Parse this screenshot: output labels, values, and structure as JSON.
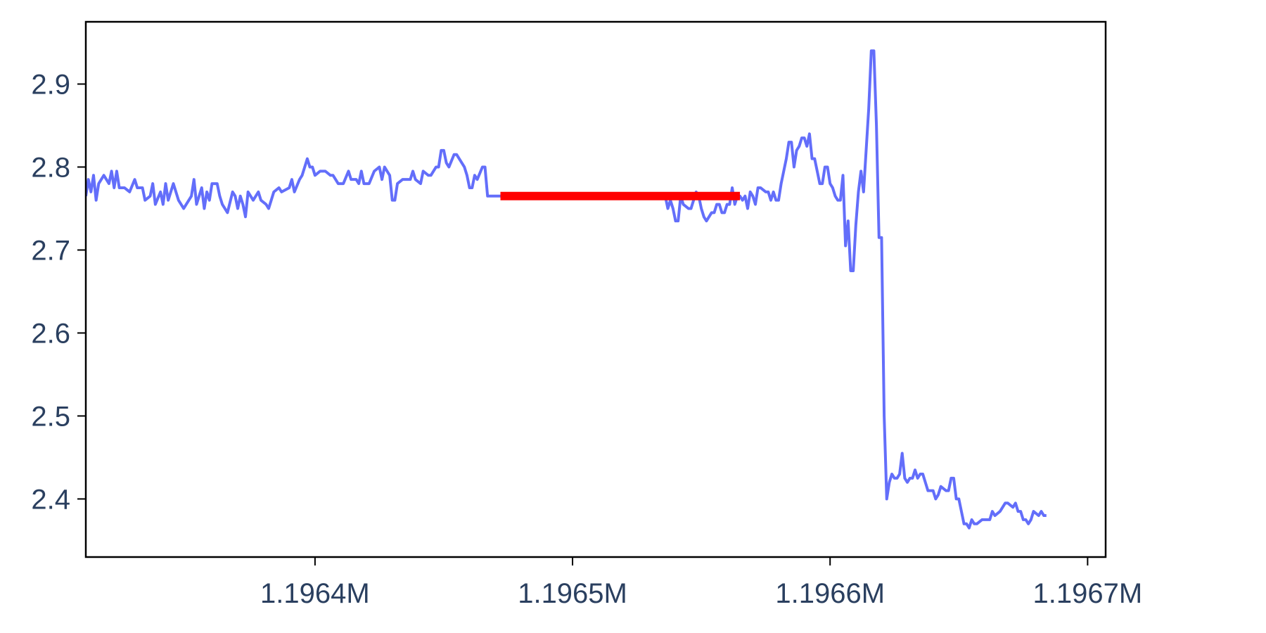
{
  "chart_data": {
    "type": "line",
    "title": "",
    "xlabel": "",
    "ylabel": "",
    "xlim": [
      1196311,
      1196707
    ],
    "ylim": [
      2.33,
      2.975
    ],
    "x_ticks": [
      {
        "value": 1196400,
        "label": "1.1964M"
      },
      {
        "value": 1196500,
        "label": "1.1965M"
      },
      {
        "value": 1196600,
        "label": "1.1966M"
      },
      {
        "value": 1196700,
        "label": "1.1967M"
      }
    ],
    "y_ticks": [
      {
        "value": 2.4,
        "label": "2.4"
      },
      {
        "value": 2.5,
        "label": "2.5"
      },
      {
        "value": 2.6,
        "label": "2.6"
      },
      {
        "value": 2.7,
        "label": "2.7"
      },
      {
        "value": 2.8,
        "label": "2.8"
      },
      {
        "value": 2.9,
        "label": "2.9"
      }
    ],
    "grid": false,
    "series": [
      {
        "color": "#636efa",
        "points": [
          [
            1196311,
            2.765
          ],
          [
            1196312,
            2.785
          ],
          [
            1196313,
            2.77
          ],
          [
            1196314,
            2.79
          ],
          [
            1196315,
            2.76
          ],
          [
            1196316,
            2.78
          ],
          [
            1196318,
            2.79
          ],
          [
            1196320,
            2.78
          ],
          [
            1196321,
            2.795
          ],
          [
            1196322,
            2.775
          ],
          [
            1196323,
            2.795
          ],
          [
            1196324,
            2.775
          ],
          [
            1196326,
            2.775
          ],
          [
            1196328,
            2.77
          ],
          [
            1196330,
            2.785
          ],
          [
            1196331,
            2.775
          ],
          [
            1196333,
            2.775
          ],
          [
            1196334,
            2.76
          ],
          [
            1196336,
            2.765
          ],
          [
            1196337,
            2.78
          ],
          [
            1196338,
            2.755
          ],
          [
            1196340,
            2.77
          ],
          [
            1196341,
            2.755
          ],
          [
            1196342,
            2.78
          ],
          [
            1196343,
            2.76
          ],
          [
            1196345,
            2.78
          ],
          [
            1196347,
            2.76
          ],
          [
            1196349,
            2.75
          ],
          [
            1196350,
            2.755
          ],
          [
            1196352,
            2.765
          ],
          [
            1196353,
            2.785
          ],
          [
            1196354,
            2.755
          ],
          [
            1196356,
            2.775
          ],
          [
            1196357,
            2.75
          ],
          [
            1196358,
            2.77
          ],
          [
            1196359,
            2.76
          ],
          [
            1196360,
            2.78
          ],
          [
            1196362,
            2.78
          ],
          [
            1196363,
            2.765
          ],
          [
            1196364,
            2.755
          ],
          [
            1196366,
            2.745
          ],
          [
            1196368,
            2.77
          ],
          [
            1196369,
            2.765
          ],
          [
            1196370,
            2.75
          ],
          [
            1196371,
            2.765
          ],
          [
            1196372,
            2.755
          ],
          [
            1196373,
            2.74
          ],
          [
            1196374,
            2.77
          ],
          [
            1196376,
            2.76
          ],
          [
            1196378,
            2.77
          ],
          [
            1196379,
            2.76
          ],
          [
            1196381,
            2.755
          ],
          [
            1196382,
            2.75
          ],
          [
            1196384,
            2.77
          ],
          [
            1196386,
            2.775
          ],
          [
            1196387,
            2.77
          ],
          [
            1196390,
            2.775
          ],
          [
            1196391,
            2.785
          ],
          [
            1196392,
            2.77
          ],
          [
            1196394,
            2.785
          ],
          [
            1196395,
            2.79
          ],
          [
            1196397,
            2.81
          ],
          [
            1196398,
            2.8
          ],
          [
            1196399,
            2.8
          ],
          [
            1196400,
            2.79
          ],
          [
            1196402,
            2.795
          ],
          [
            1196404,
            2.795
          ],
          [
            1196406,
            2.79
          ],
          [
            1196407,
            2.79
          ],
          [
            1196409,
            2.78
          ],
          [
            1196411,
            2.78
          ],
          [
            1196413,
            2.795
          ],
          [
            1196414,
            2.785
          ],
          [
            1196416,
            2.785
          ],
          [
            1196417,
            2.78
          ],
          [
            1196418,
            2.795
          ],
          [
            1196419,
            2.78
          ],
          [
            1196421,
            2.78
          ],
          [
            1196423,
            2.795
          ],
          [
            1196425,
            2.8
          ],
          [
            1196426,
            2.785
          ],
          [
            1196427,
            2.8
          ],
          [
            1196428,
            2.795
          ],
          [
            1196429,
            2.79
          ],
          [
            1196430,
            2.76
          ],
          [
            1196431,
            2.76
          ],
          [
            1196432,
            2.78
          ],
          [
            1196434,
            2.785
          ],
          [
            1196437,
            2.785
          ],
          [
            1196438,
            2.795
          ],
          [
            1196439,
            2.785
          ],
          [
            1196441,
            2.78
          ],
          [
            1196442,
            2.795
          ],
          [
            1196444,
            2.79
          ],
          [
            1196445,
            2.79
          ],
          [
            1196447,
            2.8
          ],
          [
            1196448,
            2.8
          ],
          [
            1196449,
            2.82
          ],
          [
            1196450,
            2.82
          ],
          [
            1196451,
            2.805
          ],
          [
            1196452,
            2.8
          ],
          [
            1196454,
            2.815
          ],
          [
            1196455,
            2.815
          ],
          [
            1196456,
            2.81
          ],
          [
            1196457,
            2.805
          ],
          [
            1196458,
            2.8
          ],
          [
            1196459,
            2.79
          ],
          [
            1196460,
            2.775
          ],
          [
            1196461,
            2.775
          ],
          [
            1196462,
            2.79
          ],
          [
            1196463,
            2.785
          ],
          [
            1196465,
            2.8
          ],
          [
            1196466,
            2.8
          ],
          [
            1196467,
            2.765
          ],
          [
            1196500,
            2.765
          ],
          [
            1196524,
            2.765
          ],
          [
            1196536,
            2.765
          ],
          [
            1196537,
            2.75
          ],
          [
            1196538,
            2.76
          ],
          [
            1196539,
            2.75
          ],
          [
            1196540,
            2.735
          ],
          [
            1196541,
            2.735
          ],
          [
            1196542,
            2.765
          ],
          [
            1196543,
            2.755
          ],
          [
            1196545,
            2.75
          ],
          [
            1196546,
            2.75
          ],
          [
            1196548,
            2.77
          ],
          [
            1196549,
            2.765
          ],
          [
            1196550,
            2.75
          ],
          [
            1196551,
            2.74
          ],
          [
            1196552,
            2.735
          ],
          [
            1196554,
            2.745
          ],
          [
            1196555,
            2.745
          ],
          [
            1196556,
            2.755
          ],
          [
            1196557,
            2.755
          ],
          [
            1196558,
            2.745
          ],
          [
            1196559,
            2.745
          ],
          [
            1196560,
            2.755
          ],
          [
            1196561,
            2.755
          ],
          [
            1196562,
            2.775
          ],
          [
            1196563,
            2.755
          ],
          [
            1196564,
            2.765
          ],
          [
            1196565,
            2.765
          ],
          [
            1196566,
            2.76
          ],
          [
            1196567,
            2.765
          ],
          [
            1196568,
            2.75
          ],
          [
            1196569,
            2.77
          ],
          [
            1196570,
            2.765
          ],
          [
            1196571,
            2.755
          ],
          [
            1196572,
            2.775
          ],
          [
            1196573,
            2.775
          ],
          [
            1196575,
            2.77
          ],
          [
            1196576,
            2.77
          ],
          [
            1196577,
            2.76
          ],
          [
            1196578,
            2.77
          ],
          [
            1196579,
            2.76
          ],
          [
            1196580,
            2.76
          ],
          [
            1196581,
            2.78
          ],
          [
            1196582,
            2.795
          ],
          [
            1196583,
            2.81
          ],
          [
            1196584,
            2.83
          ],
          [
            1196585,
            2.83
          ],
          [
            1196586,
            2.8
          ],
          [
            1196587,
            2.82
          ],
          [
            1196588,
            2.825
          ],
          [
            1196589,
            2.835
          ],
          [
            1196590,
            2.835
          ],
          [
            1196591,
            2.825
          ],
          [
            1196592,
            2.84
          ],
          [
            1196593,
            2.81
          ],
          [
            1196594,
            2.81
          ],
          [
            1196595,
            2.795
          ],
          [
            1196596,
            2.78
          ],
          [
            1196597,
            2.78
          ],
          [
            1196598,
            2.8
          ],
          [
            1196599,
            2.8
          ],
          [
            1196600,
            2.78
          ],
          [
            1196601,
            2.775
          ],
          [
            1196602,
            2.765
          ],
          [
            1196603,
            2.76
          ],
          [
            1196604,
            2.76
          ],
          [
            1196605,
            2.79
          ],
          [
            1196606,
            2.705
          ],
          [
            1196607,
            2.735
          ],
          [
            1196608,
            2.675
          ],
          [
            1196609,
            2.675
          ],
          [
            1196610,
            2.73
          ],
          [
            1196611,
            2.77
          ],
          [
            1196612,
            2.795
          ],
          [
            1196613,
            2.77
          ],
          [
            1196614,
            2.82
          ],
          [
            1196615,
            2.87
          ],
          [
            1196616,
            2.94
          ],
          [
            1196617,
            2.94
          ],
          [
            1196618,
            2.85
          ],
          [
            1196619,
            2.715
          ],
          [
            1196620,
            2.715
          ],
          [
            1196621,
            2.5
          ],
          [
            1196622,
            2.4
          ],
          [
            1196623,
            2.42
          ],
          [
            1196624,
            2.43
          ],
          [
            1196625,
            2.425
          ],
          [
            1196626,
            2.425
          ],
          [
            1196627,
            2.43
          ],
          [
            1196628,
            2.455
          ],
          [
            1196629,
            2.425
          ],
          [
            1196630,
            2.42
          ],
          [
            1196631,
            2.425
          ],
          [
            1196632,
            2.425
          ],
          [
            1196633,
            2.435
          ],
          [
            1196634,
            2.425
          ],
          [
            1196635,
            2.43
          ],
          [
            1196636,
            2.43
          ],
          [
            1196637,
            2.42
          ],
          [
            1196638,
            2.41
          ],
          [
            1196640,
            2.41
          ],
          [
            1196641,
            2.4
          ],
          [
            1196642,
            2.405
          ],
          [
            1196643,
            2.415
          ],
          [
            1196645,
            2.41
          ],
          [
            1196646,
            2.41
          ],
          [
            1196647,
            2.425
          ],
          [
            1196648,
            2.425
          ],
          [
            1196649,
            2.4
          ],
          [
            1196650,
            2.4
          ],
          [
            1196651,
            2.385
          ],
          [
            1196652,
            2.37
          ],
          [
            1196653,
            2.37
          ],
          [
            1196654,
            2.365
          ],
          [
            1196655,
            2.375
          ],
          [
            1196656,
            2.37
          ],
          [
            1196657,
            2.37
          ],
          [
            1196659,
            2.375
          ],
          [
            1196660,
            2.375
          ],
          [
            1196662,
            2.375
          ],
          [
            1196663,
            2.385
          ],
          [
            1196664,
            2.38
          ],
          [
            1196666,
            2.385
          ],
          [
            1196667,
            2.39
          ],
          [
            1196668,
            2.395
          ],
          [
            1196669,
            2.395
          ],
          [
            1196671,
            2.39
          ],
          [
            1196672,
            2.395
          ],
          [
            1196673,
            2.385
          ],
          [
            1196674,
            2.385
          ],
          [
            1196675,
            2.375
          ],
          [
            1196676,
            2.375
          ],
          [
            1196677,
            2.37
          ],
          [
            1196678,
            2.375
          ],
          [
            1196679,
            2.385
          ],
          [
            1196681,
            2.38
          ],
          [
            1196682,
            2.385
          ],
          [
            1196683,
            2.38
          ],
          [
            1196684,
            2.38
          ]
        ]
      },
      {
        "color": "#ff0000",
        "points": [
          [
            1196472,
            2.765
          ],
          [
            1196565,
            2.765
          ]
        ]
      }
    ]
  }
}
